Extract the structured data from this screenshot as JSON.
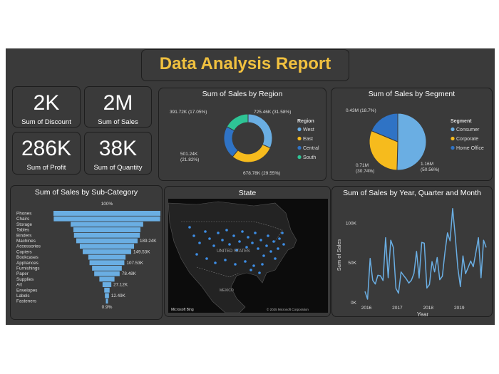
{
  "report_title": "Data Analysis Report",
  "kpis": [
    {
      "value": "2K",
      "label": "Sum of Discount"
    },
    {
      "value": "2M",
      "label": "Sum of Sales"
    },
    {
      "value": "286K",
      "label": "Sum of Profit"
    },
    {
      "value": "38K",
      "label": "Sum of Quantity"
    }
  ],
  "colors": {
    "blue": "#6aaee3",
    "dark_blue": "#2f73c5",
    "gold": "#f6bb1d",
    "teal": "#2ec495",
    "title": "#f1c13f",
    "panel": "#3a3a3a"
  },
  "chart_data": [
    {
      "type": "pie",
      "title": "Sum of Sales by Region",
      "legend_title": "Region",
      "legend_position": "right",
      "donut": true,
      "slices": [
        {
          "name": "West",
          "value": 725.46,
          "label": "725.46K (31.58%)",
          "color": "#6aaee3"
        },
        {
          "name": "East",
          "value": 678.78,
          "label": "678.78K (29.55%)",
          "color": "#f6bb1d"
        },
        {
          "name": "Central",
          "value": 501.24,
          "label": "501.24K (21.82%)",
          "color": "#2f73c5"
        },
        {
          "name": "South",
          "value": 391.72,
          "label": "391.72K (17.05%)",
          "color": "#2ec495"
        }
      ]
    },
    {
      "type": "pie",
      "title": "Sum of Sales by Segment",
      "legend_title": "Segment",
      "legend_position": "right",
      "donut": false,
      "slices": [
        {
          "name": "Consumer",
          "value": 1.16,
          "label": "1.16M (50.56%)",
          "color": "#6aaee3"
        },
        {
          "name": "Corporate",
          "value": 0.71,
          "label": "0.71M (30.74%)",
          "color": "#f6bb1d"
        },
        {
          "name": "Home Office",
          "value": 0.43,
          "label": "0.43M (18.7%)",
          "color": "#2f73c5"
        }
      ]
    },
    {
      "type": "bar",
      "subtype": "funnel",
      "title": "Sum of Sales by Sub-Category",
      "top_label": "100%",
      "bottom_label": "0.9%",
      "categories": [
        "Phones",
        "Chairs",
        "Storage",
        "Tables",
        "Binders",
        "Machines",
        "Accessories",
        "Copiers",
        "Bookcases",
        "Appliances",
        "Furnishings",
        "Paper",
        "Supplies",
        "Art",
        "Envelopes",
        "Labels",
        "Fasteners"
      ],
      "values": [
        330.01,
        328.45,
        223.84,
        206.97,
        203.41,
        189.24,
        167.38,
        149.53,
        114.88,
        107.53,
        91.71,
        78.48,
        46.67,
        27.12,
        16.48,
        12.49,
        3.02
      ],
      "value_labels": [
        "",
        "",
        "",
        "",
        "",
        "189.24K",
        "",
        "149.53K",
        "",
        "107.53K",
        "",
        "78.48K",
        "",
        "27.12K",
        "",
        "12.49K",
        ""
      ]
    },
    {
      "type": "line",
      "title": "Sum of Sales by Year, Quarter and Month",
      "xlabel": "Year",
      "ylabel": "Sum of Sales",
      "x_ticks": [
        "2016",
        "2017",
        "2018",
        "2019"
      ],
      "y_ticks": [
        {
          "value": 0,
          "label": "0K"
        },
        {
          "value": 50,
          "label": "50K"
        },
        {
          "value": 100,
          "label": "100K"
        }
      ],
      "ylim": [
        0,
        120
      ],
      "series": [
        {
          "values": [
            14.2,
            4.5,
            55.7,
            28.3,
            23.6,
            34.6,
            33.9,
            28,
            81.8,
            31.5,
            78.6,
            69.5,
            18.2,
            12,
            38.7,
            34.2,
            30.1,
            24.8,
            28.3,
            36.9,
            64.6,
            31.1,
            75.9,
            74.9,
            18.5,
            22.9,
            51.7,
            38.8,
            56.9,
            29,
            33.3,
            63.1,
            87.9,
            77.8,
            118.4,
            83.8,
            44,
            20.3,
            58.9,
            36.5,
            44.3,
            52.5,
            45.3,
            63.1,
            81.8,
            31.5,
            78.6,
            69.5
          ]
        }
      ]
    }
  ],
  "map": {
    "title": "State",
    "country_label": "UNITED STATES",
    "mexico_label": "MEXICO",
    "brand": "Microsoft Bing",
    "copyright": "© 2025 Microsoft Corporation"
  }
}
